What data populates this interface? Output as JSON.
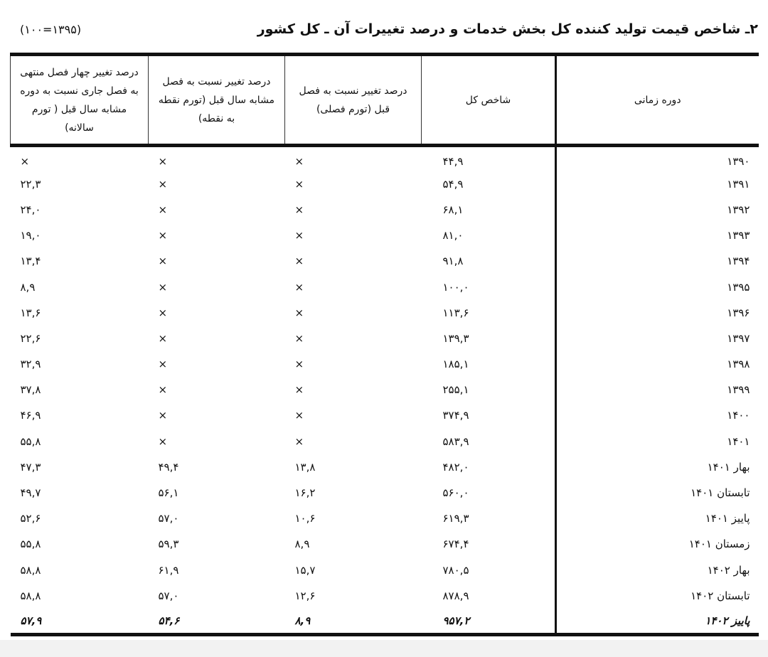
{
  "title": "۲ـ شاخص قیمت تولید کننده کل بخش خدمات و درصد تغییرات آن ـ کل کشور",
  "base_note": "(۱۳۹۵=۱۰۰)",
  "table": {
    "headers": [
      "دوره زمانی",
      "شاخص کل",
      "درصد تغییر نسبت به فصل قبل (تورم فصلی)",
      "درصد تغییر نسبت به فصل مشابه سال قبل (تورم نقطه به نقطه)",
      "درصد تغییر چهار فصل منتهی به فصل جاری نسبت به دوره مشابه سال قبل ( تورم سالانه)"
    ],
    "rows": [
      [
        "۱۳۹۰",
        "۴۴,۹",
        "×",
        "×",
        "×"
      ],
      [
        "۱۳۹۱",
        "۵۴,۹",
        "×",
        "×",
        "۲۲,۳"
      ],
      [
        "۱۳۹۲",
        "۶۸,۱",
        "×",
        "×",
        "۲۴,۰"
      ],
      [
        "۱۳۹۳",
        "۸۱,۰",
        "×",
        "×",
        "۱۹,۰"
      ],
      [
        "۱۳۹۴",
        "۹۱,۸",
        "×",
        "×",
        "۱۳,۴"
      ],
      [
        "۱۳۹۵",
        "۱۰۰,۰",
        "×",
        "×",
        "۸,۹"
      ],
      [
        "۱۳۹۶",
        "۱۱۳,۶",
        "×",
        "×",
        "۱۳,۶"
      ],
      [
        "۱۳۹۷",
        "۱۳۹,۳",
        "×",
        "×",
        "۲۲,۶"
      ],
      [
        "۱۳۹۸",
        "۱۸۵,۱",
        "×",
        "×",
        "۳۲,۹"
      ],
      [
        "۱۳۹۹",
        "۲۵۵,۱",
        "×",
        "×",
        "۳۷,۸"
      ],
      [
        "۱۴۰۰",
        "۳۷۴,۹",
        "×",
        "×",
        "۴۶,۹"
      ],
      [
        "۱۴۰۱",
        "۵۸۳,۹",
        "×",
        "×",
        "۵۵,۸"
      ],
      [
        "بهار ۱۴۰۱",
        "۴۸۲,۰",
        "۱۳,۸",
        "۴۹,۴",
        "۴۷,۳"
      ],
      [
        "تابستان ۱۴۰۱",
        "۵۶۰,۰",
        "۱۶,۲",
        "۵۶,۱",
        "۴۹,۷"
      ],
      [
        "پاییز ۱۴۰۱",
        "۶۱۹,۳",
        "۱۰,۶",
        "۵۷,۰",
        "۵۲,۶"
      ],
      [
        "زمستان ۱۴۰۱",
        "۶۷۴,۴",
        "۸,۹",
        "۵۹,۳",
        "۵۵,۸"
      ],
      [
        "بهار ۱۴۰۲",
        "۷۸۰,۵",
        "۱۵,۷",
        "۶۱,۹",
        "۵۸,۸"
      ],
      [
        "تابستان ۱۴۰۲",
        "۸۷۸,۹",
        "۱۲,۶",
        "۵۷,۰",
        "۵۸,۸"
      ],
      [
        "پاییز ۱۴۰۲",
        "۹۵۷,۲",
        "۸,۹",
        "۵۴,۶",
        "۵۷,۹"
      ]
    ]
  }
}
